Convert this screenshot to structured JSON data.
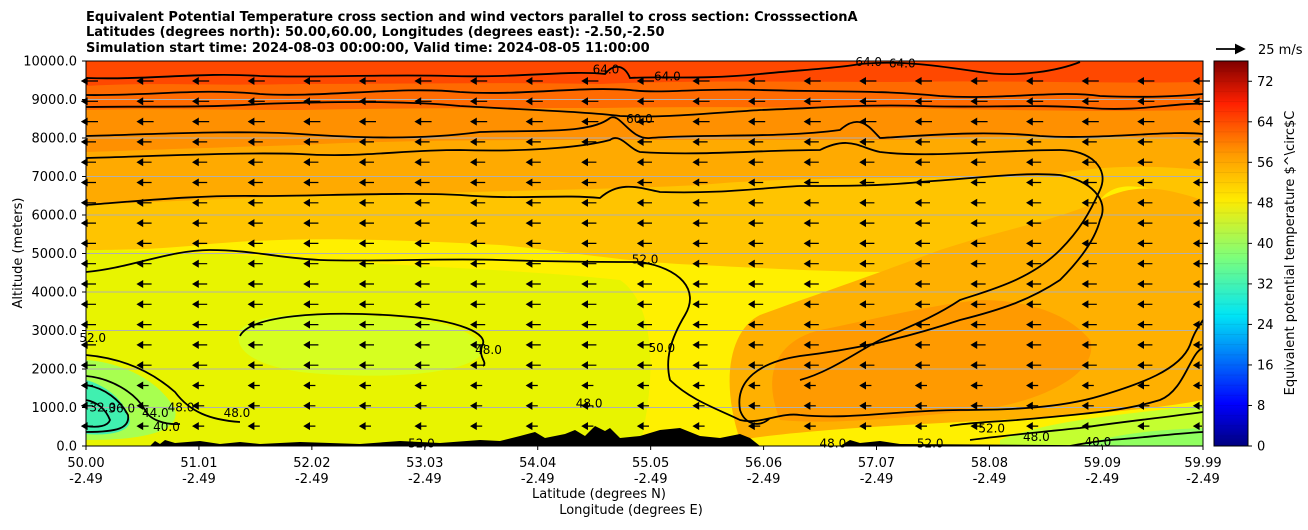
{
  "chart_data": {
    "type": "contourf",
    "title_lines": [
      "Equivalent Potential Temperature cross section and wind vectors parallel to cross section: CrosssectionA",
      "Latitudes (degrees north): 50.00,60.00, Longitudes (degrees east): -2.50,-2.50",
      "Simulation start time: 2024-08-03 00:00:00, Valid time: 2024-08-05 11:00:00"
    ],
    "ylabel": "Altitude (meters)",
    "xlabel_line1": "Latitude (degrees N)",
    "xlabel_line2": "Longitude (degrees E)",
    "ylim": [
      0,
      10000
    ],
    "yticks": [
      0,
      1000,
      2000,
      3000,
      4000,
      5000,
      6000,
      7000,
      8000,
      9000,
      10000
    ],
    "ytick_labels": [
      "0.0",
      "1000.0",
      "2000.0",
      "3000.0",
      "4000.0",
      "5000.0",
      "6000.0",
      "7000.0",
      "8000.0",
      "9000.0",
      "10000.0"
    ],
    "xlim": [
      50.0,
      59.99
    ],
    "xticks": [
      50.0,
      51.01,
      52.02,
      53.03,
      54.04,
      55.05,
      56.06,
      57.07,
      58.08,
      59.09,
      59.99
    ],
    "xtick_lat_labels": [
      "50.00",
      "51.01",
      "52.02",
      "53.03",
      "54.04",
      "55.05",
      "56.06",
      "57.07",
      "58.08",
      "59.09",
      "59.99"
    ],
    "xtick_lon_labels": [
      "-2.49",
      "-2.49",
      "-2.49",
      "-2.49",
      "-2.49",
      "-2.49",
      "-2.49",
      "-2.49",
      "-2.49",
      "-2.49",
      "-2.49"
    ],
    "horizontal_grid": true,
    "colorbar": {
      "label": "Equivalent potential temperature $^\\circ$C",
      "range": [
        0,
        76
      ],
      "ticks": [
        0,
        8,
        16,
        24,
        32,
        40,
        48,
        56,
        64,
        72
      ],
      "tick_labels": [
        "0",
        "8",
        "16",
        "24",
        "32",
        "40",
        "48",
        "56",
        "64",
        "72"
      ]
    },
    "quiver_key": {
      "label": "25 m/s"
    },
    "contour_labels": [
      {
        "text": "64.0",
        "x": 55.2,
        "y": 9600
      },
      {
        "text": "64.0",
        "x": 54.65,
        "y": 9780
      },
      {
        "text": "64.0",
        "x": 57.0,
        "y": 9980
      },
      {
        "text": "64.0",
        "x": 57.3,
        "y": 9940
      },
      {
        "text": "60.0",
        "x": 54.95,
        "y": 8500
      },
      {
        "text": "52.0",
        "x": 55.0,
        "y": 4850
      },
      {
        "text": "52.0",
        "x": 50.06,
        "y": 2800
      },
      {
        "text": "50.0",
        "x": 55.15,
        "y": 2550
      },
      {
        "text": "48.0",
        "x": 53.6,
        "y": 2500
      },
      {
        "text": "48.0",
        "x": 54.5,
        "y": 1100
      },
      {
        "text": "48.0",
        "x": 50.85,
        "y": 1000
      },
      {
        "text": "48.0",
        "x": 51.35,
        "y": 860
      },
      {
        "text": "44.0",
        "x": 50.62,
        "y": 860
      },
      {
        "text": "40.0",
        "x": 50.72,
        "y": 500
      },
      {
        "text": "36.0",
        "x": 50.32,
        "y": 980
      },
      {
        "text": "32.0",
        "x": 50.15,
        "y": 1000
      },
      {
        "text": "52.0",
        "x": 53.0,
        "y": 60
      },
      {
        "text": "48.0",
        "x": 56.68,
        "y": 60
      },
      {
        "text": "52.0",
        "x": 57.55,
        "y": 70
      },
      {
        "text": "52.0",
        "x": 58.1,
        "y": 460
      },
      {
        "text": "48.0",
        "x": 58.5,
        "y": 230
      },
      {
        "text": "40.0",
        "x": 59.05,
        "y": 100
      }
    ]
  }
}
